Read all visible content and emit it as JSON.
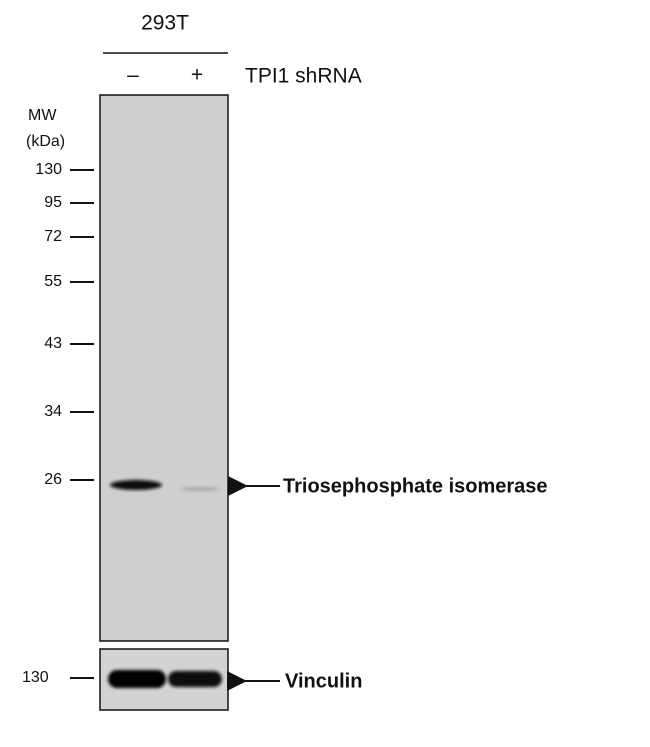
{
  "header": {
    "cell_line": "293T",
    "lanes": [
      "–",
      "+"
    ],
    "treatment": "TPI1 shRNA"
  },
  "main_blot": {
    "mw_title": "MW",
    "mw_unit": "(kDa)",
    "markers": [
      "130",
      "95",
      "72",
      "55",
      "43",
      "34",
      "26"
    ],
    "band_label": "Triosephosphate isomerase"
  },
  "control_blot": {
    "marker": "130",
    "band_label": "Vinculin"
  }
}
